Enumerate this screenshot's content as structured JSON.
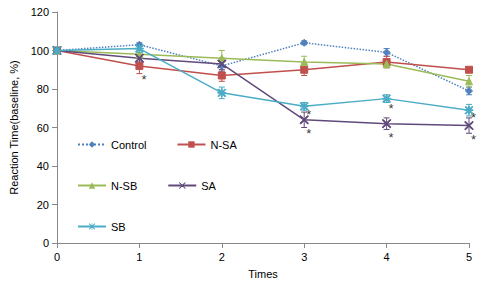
{
  "chart_data": {
    "type": "line",
    "x_label": "Times",
    "y_label": "Reaction Time(baseline, %)",
    "categories": [
      "0",
      "1",
      "2",
      "3",
      "4",
      "5"
    ],
    "ylim": [
      0,
      120
    ],
    "yticks": [
      0,
      20,
      40,
      60,
      80,
      100,
      120
    ],
    "grid": false,
    "legend": "lower left",
    "series": [
      {
        "name": "Control",
        "color": "#4f81bd",
        "marker": "diamond",
        "line_style": "dotted",
        "values": [
          100,
          103,
          92,
          104,
          99,
          79
        ],
        "errors": [
          0,
          1,
          3,
          1,
          2,
          2
        ]
      },
      {
        "name": "N-SA",
        "color": "#c0504d",
        "marker": "square",
        "line_style": "solid",
        "values": [
          100,
          92,
          87,
          90,
          94,
          90
        ],
        "errors": [
          0,
          4,
          3,
          3,
          3,
          1
        ]
      },
      {
        "name": "N-SB",
        "color": "#9bbb59",
        "marker": "triangle",
        "line_style": "solid",
        "values": [
          100,
          98,
          96,
          94,
          93,
          84
        ],
        "errors": [
          0,
          2,
          4,
          3,
          2,
          3
        ]
      },
      {
        "name": "SA",
        "color": "#604a7b",
        "marker": "x",
        "line_style": "solid",
        "values": [
          100,
          96,
          93,
          64,
          62,
          61
        ],
        "errors": [
          0,
          2,
          3,
          4,
          3,
          4
        ]
      },
      {
        "name": "SB",
        "color": "#4bacc6",
        "marker": "asterisk",
        "line_style": "solid",
        "values": [
          100,
          101,
          78,
          71,
          75,
          69
        ],
        "errors": [
          0,
          2,
          3,
          2,
          2,
          3
        ]
      }
    ],
    "annotations": [
      {
        "x": 1,
        "y": 85,
        "text": "*"
      },
      {
        "x": 3,
        "y": 67,
        "text": "*"
      },
      {
        "x": 3,
        "y": 57,
        "text": "*"
      },
      {
        "x": 4,
        "y": 70,
        "text": "*"
      },
      {
        "x": 4,
        "y": 55,
        "text": "*"
      },
      {
        "x": 5,
        "y": 65,
        "text": "*"
      },
      {
        "x": 5,
        "y": 54,
        "text": "*"
      }
    ]
  }
}
